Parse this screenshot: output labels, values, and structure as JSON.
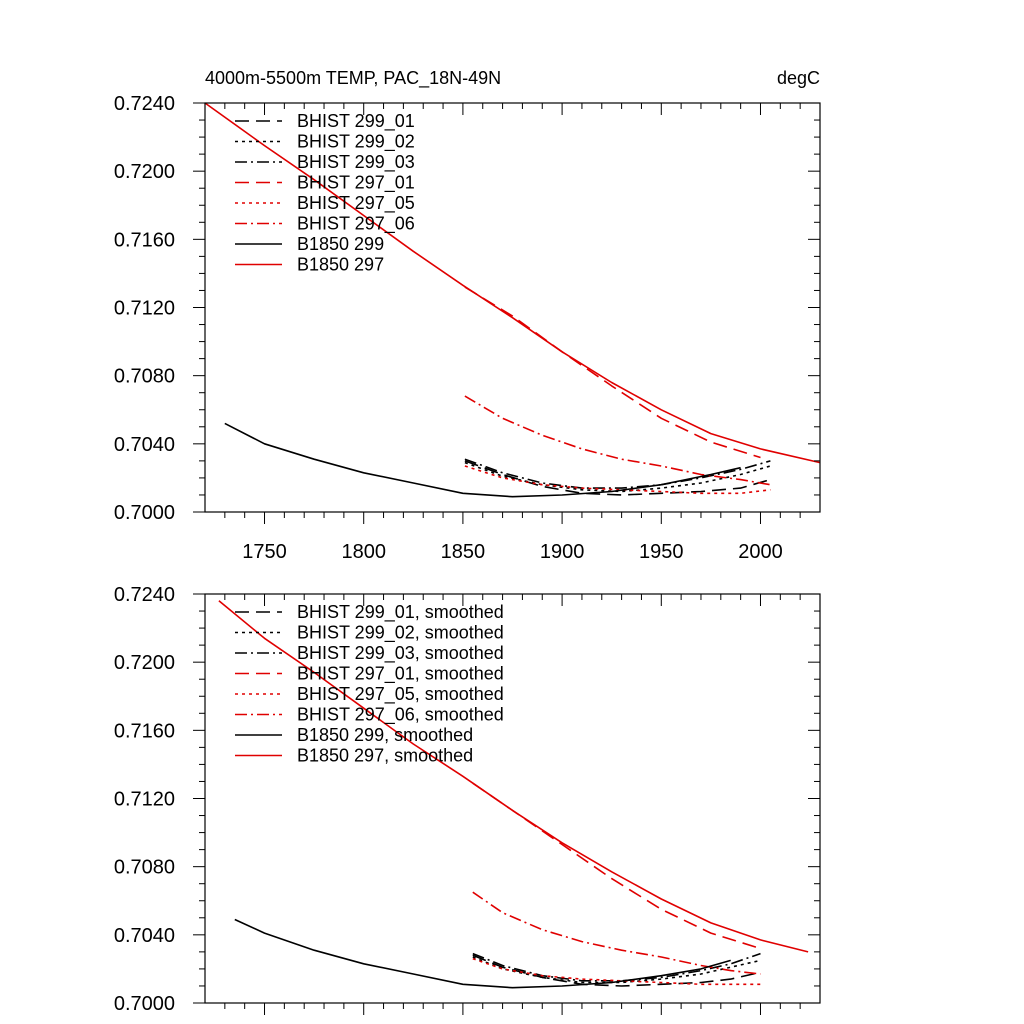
{
  "chart_data": [
    {
      "type": "line",
      "title": "4000m-5500m TEMP, PAC_18N-49N",
      "units_label": "degC",
      "xlim": [
        1720,
        2030
      ],
      "ylim": [
        0.7,
        0.724
      ],
      "xticks": [
        "1750",
        "1800",
        "1850",
        "1900",
        "1950",
        "2000"
      ],
      "yticks": [
        "0.7000",
        "0.7040",
        "0.7080",
        "0.7120",
        "0.7160",
        "0.7200",
        "0.7240"
      ],
      "series": [
        {
          "name": "BHIST 299_01",
          "color": "#000000",
          "dash": "dash",
          "x": [
            1851,
            1870,
            1890,
            1910,
            1930,
            1950,
            1970,
            1990,
            2005
          ],
          "y": [
            0.703,
            0.7022,
            0.7015,
            0.7011,
            0.701,
            0.7011,
            0.7012,
            0.7014,
            0.7019
          ]
        },
        {
          "name": "BHIST 299_02",
          "color": "#000000",
          "dash": "dot",
          "x": [
            1851,
            1870,
            1890,
            1910,
            1930,
            1950,
            1970,
            1990,
            2005
          ],
          "y": [
            0.7029,
            0.7021,
            0.7016,
            0.7013,
            0.7012,
            0.7014,
            0.7017,
            0.7022,
            0.7027
          ]
        },
        {
          "name": "BHIST 299_03",
          "color": "#000000",
          "dash": "dashdot",
          "x": [
            1851,
            1870,
            1890,
            1910,
            1930,
            1950,
            1970,
            1990,
            2005
          ],
          "y": [
            0.7031,
            0.7023,
            0.7017,
            0.7014,
            0.7014,
            0.7016,
            0.702,
            0.7025,
            0.703
          ]
        },
        {
          "name": "BHIST 297_01",
          "color": "#e00000",
          "dash": "dash",
          "x": [
            1851,
            1875,
            1900,
            1925,
            1950,
            1975,
            2000
          ],
          "y": [
            0.7132,
            0.7115,
            0.7094,
            0.7074,
            0.7055,
            0.7041,
            0.7032
          ]
        },
        {
          "name": "BHIST 297_05",
          "color": "#e00000",
          "dash": "dot",
          "x": [
            1851,
            1870,
            1890,
            1910,
            1930,
            1950,
            1970,
            1990,
            2005
          ],
          "y": [
            0.7027,
            0.702,
            0.7016,
            0.7014,
            0.7013,
            0.7012,
            0.7011,
            0.7011,
            0.7013
          ]
        },
        {
          "name": "BHIST 297_06",
          "color": "#e00000",
          "dash": "dashdot",
          "x": [
            1851,
            1870,
            1890,
            1910,
            1930,
            1950,
            1970,
            1990,
            2005
          ],
          "y": [
            0.7068,
            0.7055,
            0.7045,
            0.7037,
            0.7031,
            0.7027,
            0.7022,
            0.7019,
            0.7016
          ]
        },
        {
          "name": "B1850 299",
          "color": "#000000",
          "dash": "solid",
          "x": [
            1730,
            1750,
            1775,
            1800,
            1825,
            1850,
            1875,
            1900,
            1925,
            1950,
            1975,
            1990
          ],
          "y": [
            0.7052,
            0.704,
            0.7031,
            0.7023,
            0.7017,
            0.7011,
            0.7009,
            0.701,
            0.7012,
            0.7016,
            0.7022,
            0.7026
          ]
        },
        {
          "name": "B1850 297",
          "color": "#e00000",
          "dash": "solid",
          "x": [
            1720,
            1750,
            1775,
            1800,
            1825,
            1850,
            1875,
            1900,
            1925,
            1950,
            1975,
            2000,
            2030
          ],
          "y": [
            0.724,
            0.7215,
            0.7195,
            0.7174,
            0.7153,
            0.7133,
            0.7114,
            0.7094,
            0.7076,
            0.706,
            0.7046,
            0.7037,
            0.7029
          ]
        }
      ]
    },
    {
      "type": "line",
      "xlim": [
        1720,
        2030
      ],
      "ylim": [
        0.7,
        0.724
      ],
      "yticks": [
        "0.7000",
        "0.7040",
        "0.7080",
        "0.7120",
        "0.7160",
        "0.7200",
        "0.7240"
      ],
      "series": [
        {
          "name": "BHIST 299_01, smoothed",
          "color": "#000000",
          "dash": "dash",
          "x": [
            1855,
            1870,
            1890,
            1910,
            1930,
            1950,
            1970,
            1985,
            2000
          ],
          "y": [
            0.7028,
            0.7021,
            0.7015,
            0.7011,
            0.701,
            0.7011,
            0.7012,
            0.7014,
            0.7018
          ]
        },
        {
          "name": "BHIST 299_02, smoothed",
          "color": "#000000",
          "dash": "dot",
          "x": [
            1855,
            1870,
            1890,
            1910,
            1930,
            1950,
            1970,
            1985,
            2000
          ],
          "y": [
            0.7027,
            0.702,
            0.7015,
            0.7012,
            0.7012,
            0.7014,
            0.7017,
            0.7021,
            0.7025
          ]
        },
        {
          "name": "BHIST 299_03, smoothed",
          "color": "#000000",
          "dash": "dashdot",
          "x": [
            1855,
            1870,
            1890,
            1910,
            1930,
            1950,
            1970,
            1985,
            2000
          ],
          "y": [
            0.7029,
            0.7022,
            0.7016,
            0.7013,
            0.7013,
            0.7015,
            0.7019,
            0.7023,
            0.7029
          ]
        },
        {
          "name": "BHIST 297_01, smoothed",
          "color": "#e00000",
          "dash": "dash",
          "x": [
            1855,
            1875,
            1900,
            1925,
            1950,
            1975,
            2000
          ],
          "y": [
            0.7129,
            0.7113,
            0.7093,
            0.7073,
            0.7055,
            0.7041,
            0.7032
          ]
        },
        {
          "name": "BHIST 297_05, smoothed",
          "color": "#e00000",
          "dash": "dot",
          "x": [
            1855,
            1870,
            1890,
            1910,
            1930,
            1950,
            1970,
            1985,
            2000
          ],
          "y": [
            0.7026,
            0.702,
            0.7016,
            0.7014,
            0.7013,
            0.7012,
            0.7011,
            0.7011,
            0.7011
          ]
        },
        {
          "name": "BHIST 297_06, smoothed",
          "color": "#e00000",
          "dash": "dashdot",
          "x": [
            1855,
            1870,
            1890,
            1910,
            1930,
            1950,
            1970,
            1985,
            2000
          ],
          "y": [
            0.7065,
            0.7053,
            0.7043,
            0.7036,
            0.7031,
            0.7027,
            0.7022,
            0.7019,
            0.7017
          ]
        },
        {
          "name": "B1850 299, smoothed",
          "color": "#000000",
          "dash": "solid",
          "x": [
            1735,
            1750,
            1775,
            1800,
            1825,
            1850,
            1875,
            1900,
            1925,
            1950,
            1970,
            1985
          ],
          "y": [
            0.7049,
            0.7041,
            0.7031,
            0.7023,
            0.7017,
            0.7011,
            0.7009,
            0.701,
            0.7012,
            0.7016,
            0.702,
            0.7025
          ]
        },
        {
          "name": "B1850 297, smoothed",
          "color": "#e00000",
          "dash": "solid",
          "x": [
            1727,
            1750,
            1775,
            1800,
            1825,
            1850,
            1875,
            1900,
            1925,
            1950,
            1975,
            2000,
            2024
          ],
          "y": [
            0.7236,
            0.7214,
            0.7194,
            0.7173,
            0.7152,
            0.7133,
            0.7113,
            0.7094,
            0.7077,
            0.7061,
            0.7047,
            0.7037,
            0.703
          ]
        }
      ]
    }
  ]
}
